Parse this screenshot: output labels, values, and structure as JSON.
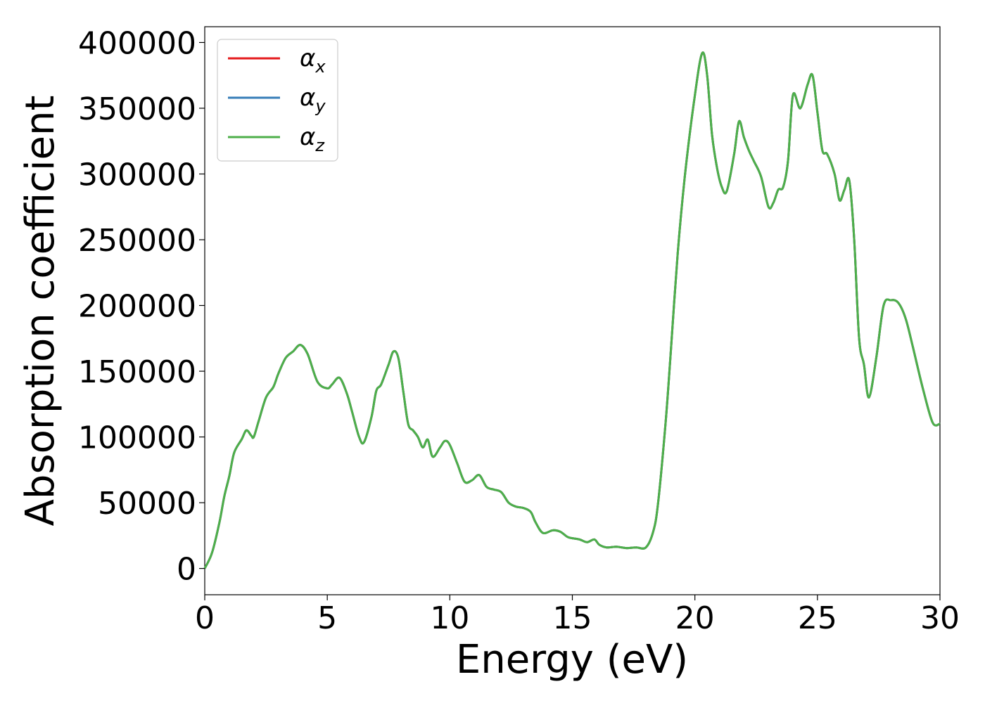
{
  "chart_data": {
    "type": "line",
    "title": "",
    "xlabel": "Energy (eV)",
    "ylabel": "Absorption coefficient",
    "xlim": [
      0,
      30
    ],
    "ylim": [
      -20000,
      412000
    ],
    "x_ticks": [
      0,
      5,
      10,
      15,
      20,
      25,
      30
    ],
    "y_ticks": [
      0,
      50000,
      100000,
      150000,
      200000,
      250000,
      300000,
      350000,
      400000
    ],
    "x_tick_labels": [
      "0",
      "5",
      "10",
      "15",
      "20",
      "25",
      "30"
    ],
    "y_tick_labels": [
      "0",
      "50000",
      "100000",
      "150000",
      "200000",
      "250000",
      "300000",
      "350000",
      "400000"
    ],
    "grid": false,
    "legend_position": "top-left",
    "series": [
      {
        "name": "α",
        "subscript": "x",
        "color": "#e41a1c"
      },
      {
        "name": "α",
        "subscript": "y",
        "color": "#377eb8"
      },
      {
        "name": "α",
        "subscript": "z",
        "color": "#4daf4a"
      }
    ],
    "x": [
      0,
      0.3,
      0.6,
      0.8,
      1.0,
      1.2,
      1.5,
      1.7,
      1.9,
      2.0,
      2.2,
      2.5,
      2.8,
      3.0,
      3.3,
      3.6,
      3.9,
      4.2,
      4.6,
      5.0,
      5.2,
      5.5,
      5.8,
      6.0,
      6.3,
      6.5,
      6.8,
      7.0,
      7.2,
      7.5,
      7.7,
      7.9,
      8.1,
      8.3,
      8.5,
      8.7,
      8.9,
      9.1,
      9.3,
      9.6,
      9.8,
      10.0,
      10.3,
      10.6,
      10.9,
      11.2,
      11.5,
      11.8,
      12.1,
      12.4,
      12.7,
      13.0,
      13.3,
      13.5,
      13.8,
      14.2,
      14.5,
      14.8,
      15.0,
      15.3,
      15.6,
      15.9,
      16.1,
      16.4,
      16.8,
      17.2,
      17.6,
      18.0,
      18.3,
      18.5,
      18.8,
      19.0,
      19.3,
      19.6,
      20.0,
      20.3,
      20.5,
      20.7,
      20.9,
      21.1,
      21.3,
      21.6,
      21.8,
      22.0,
      22.2,
      22.4,
      22.7,
      23.0,
      23.2,
      23.4,
      23.6,
      23.8,
      24.0,
      24.3,
      24.6,
      24.8,
      25.0,
      25.2,
      25.4,
      25.7,
      25.9,
      26.1,
      26.3,
      26.5,
      26.7,
      26.9,
      27.1,
      27.4,
      27.7,
      28.0,
      28.3,
      28.6,
      28.9,
      29.3,
      29.7,
      30.0
    ],
    "y": [
      0,
      12000,
      35000,
      55000,
      70000,
      88000,
      98000,
      105000,
      101000,
      100000,
      112000,
      130000,
      138000,
      148000,
      160000,
      165000,
      170000,
      163000,
      142000,
      137000,
      140000,
      145000,
      133000,
      120000,
      100000,
      96000,
      115000,
      135000,
      140000,
      155000,
      165000,
      160000,
      135000,
      110000,
      105000,
      100000,
      92000,
      98000,
      85000,
      92000,
      97000,
      94000,
      80000,
      66000,
      67000,
      71000,
      62000,
      60000,
      58000,
      50000,
      47000,
      46000,
      43000,
      35000,
      27000,
      29000,
      28000,
      24000,
      23000,
      22000,
      20000,
      22000,
      18000,
      16000,
      16500,
      15500,
      16000,
      16000,
      28000,
      50000,
      110000,
      160000,
      240000,
      300000,
      360000,
      392000,
      375000,
      330000,
      305000,
      290000,
      287000,
      315000,
      340000,
      328000,
      318000,
      310000,
      298000,
      275000,
      278000,
      288000,
      290000,
      310000,
      360000,
      350000,
      368000,
      375000,
      347000,
      318000,
      315000,
      300000,
      280000,
      288000,
      295000,
      250000,
      175000,
      155000,
      130000,
      160000,
      200000,
      204000,
      202000,
      190000,
      168000,
      137000,
      111000,
      110000
    ]
  }
}
